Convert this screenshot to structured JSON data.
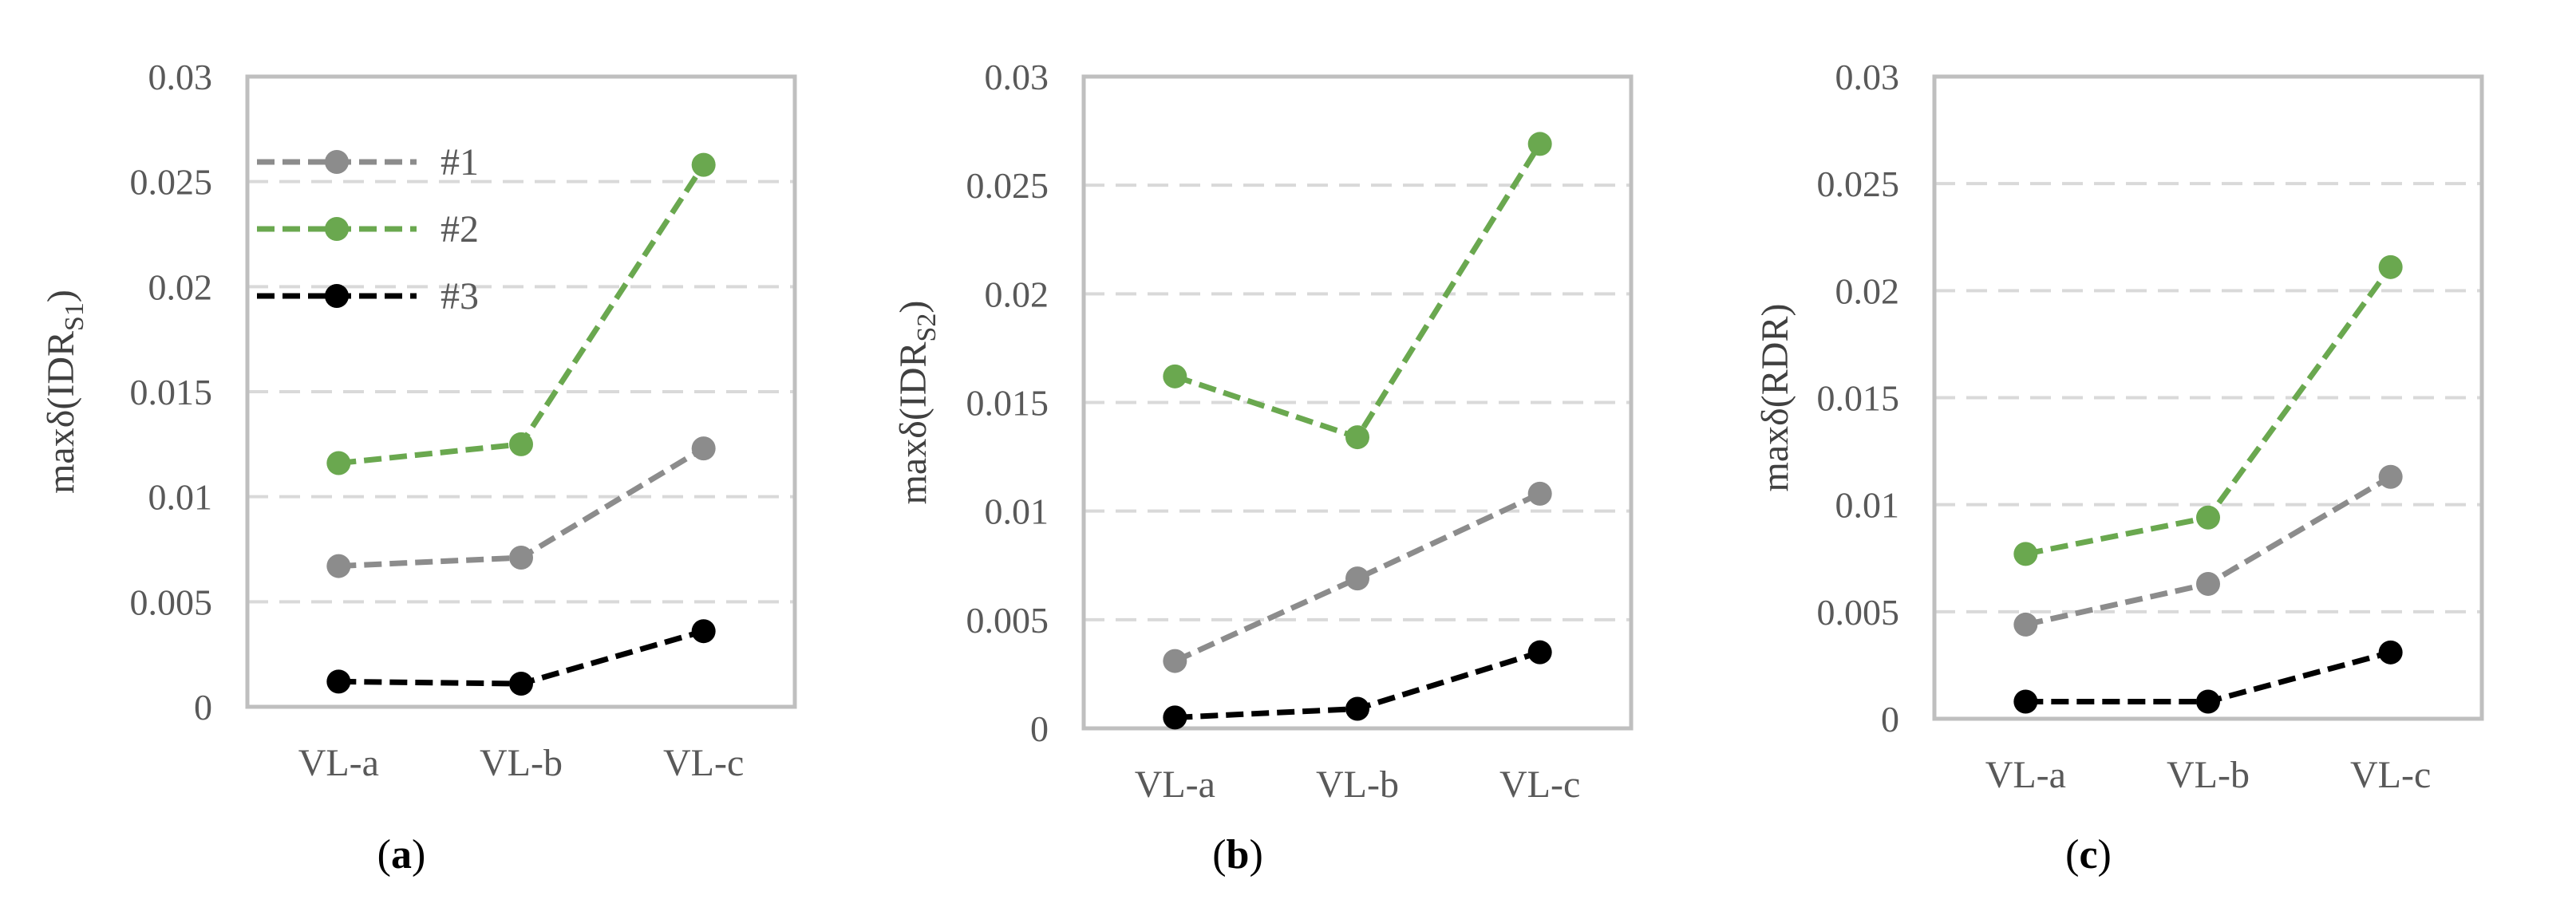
{
  "colors": {
    "series1": "#8c8c8c",
    "series2": "#6aa84f",
    "series3": "#000000",
    "grid": "#d9d9d9",
    "frame": "#bfbfbf"
  },
  "chart_data": [
    {
      "type": "line",
      "categories": [
        "VL-a",
        "VL-b",
        "VL-c"
      ],
      "ylabel": {
        "pre": "maxδ(IDR",
        "sub": "S1",
        "post": ")"
      },
      "caption": {
        "open": "(",
        "letter": "a",
        "close": ")"
      },
      "ylim": [
        0,
        0.03
      ],
      "yticks": [
        "0",
        "0.005",
        "0.01",
        "0.015",
        "0.02",
        "0.025",
        "0.03"
      ],
      "legend": [
        "#1",
        "#2",
        "#3"
      ],
      "series": [
        {
          "name": "#1",
          "values": [
            0.0067,
            0.0071,
            0.0123
          ]
        },
        {
          "name": "#2",
          "values": [
            0.0116,
            0.0125,
            0.0258
          ]
        },
        {
          "name": "#3",
          "values": [
            0.0012,
            0.0011,
            0.0036
          ]
        }
      ]
    },
    {
      "type": "line",
      "categories": [
        "VL-a",
        "VL-b",
        "VL-c"
      ],
      "ylabel": {
        "pre": "maxδ(IDR",
        "sub": "S2",
        "post": ")"
      },
      "caption": {
        "open": "(",
        "letter": "b",
        "close": ")"
      },
      "ylim": [
        0,
        0.03
      ],
      "yticks": [
        "0",
        "0.005",
        "0.01",
        "0.015",
        "0.02",
        "0.025",
        "0.03"
      ],
      "series": [
        {
          "name": "#1",
          "values": [
            0.0031,
            0.0069,
            0.0108
          ]
        },
        {
          "name": "#2",
          "values": [
            0.0162,
            0.0134,
            0.0269
          ]
        },
        {
          "name": "#3",
          "values": [
            0.0005,
            0.0009,
            0.0035
          ]
        }
      ]
    },
    {
      "type": "line",
      "categories": [
        "VL-a",
        "VL-b",
        "VL-c"
      ],
      "ylabel": {
        "pre": "maxδ(RDR)",
        "sub": "",
        "post": ""
      },
      "caption": {
        "open": "(",
        "letter": "c",
        "close": ")"
      },
      "ylim": [
        0,
        0.03
      ],
      "yticks": [
        "0",
        "0.005",
        "0.01",
        "0.015",
        "0.02",
        "0.025",
        "0.03"
      ],
      "series": [
        {
          "name": "#1",
          "values": [
            0.0044,
            0.0063,
            0.0113
          ]
        },
        {
          "name": "#2",
          "values": [
            0.0077,
            0.0094,
            0.0211
          ]
        },
        {
          "name": "#3",
          "values": [
            0.0008,
            0.0008,
            0.0031
          ]
        }
      ]
    }
  ]
}
